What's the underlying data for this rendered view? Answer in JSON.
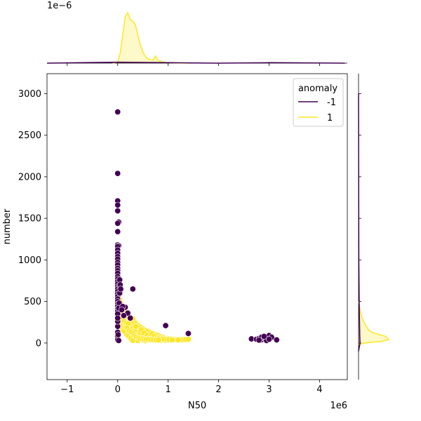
{
  "chart_data": {
    "type": "scatter",
    "title": "",
    "xlabel": "N50",
    "ylabel": "number",
    "x_offset_label": "1e6",
    "y_offset_label": "",
    "top_marginal_offset_label": "1e−6",
    "x_range": [
      -1400000,
      4550000
    ],
    "y_range": [
      -440,
      3240
    ],
    "x_ticks": [
      -1000000,
      0,
      1000000,
      2000000,
      3000000,
      4000000
    ],
    "x_tick_labels": [
      "−1",
      "0",
      "1",
      "2",
      "3",
      "4"
    ],
    "y_ticks": [
      0,
      500,
      1000,
      1500,
      2000,
      2500,
      3000
    ],
    "y_tick_labels": [
      "0",
      "500",
      "1000",
      "1500",
      "2000",
      "2500",
      "3000"
    ],
    "grid": false,
    "legend": {
      "title": "anomaly",
      "placement": "top-right",
      "entries": [
        {
          "label": "-1",
          "color": "#440154"
        },
        {
          "label": "1",
          "color": "#fde725"
        }
      ]
    },
    "series": [
      {
        "name": "1",
        "color": "#fde725",
        "points": [
          [
            40000,
            520
          ],
          [
            60000,
            480
          ],
          [
            80000,
            450
          ],
          [
            120000,
            420
          ],
          [
            150000,
            400
          ],
          [
            100000,
            380
          ],
          [
            50000,
            350
          ],
          [
            200000,
            340
          ],
          [
            180000,
            320
          ],
          [
            250000,
            300
          ],
          [
            300000,
            290
          ],
          [
            120000,
            280
          ],
          [
            80000,
            260
          ],
          [
            220000,
            250
          ],
          [
            350000,
            240
          ],
          [
            280000,
            230
          ],
          [
            150000,
            220
          ],
          [
            400000,
            210
          ],
          [
            60000,
            200
          ],
          [
            450000,
            190
          ],
          [
            320000,
            180
          ],
          [
            200000,
            175
          ],
          [
            500000,
            170
          ],
          [
            100000,
            165
          ],
          [
            380000,
            160
          ],
          [
            550000,
            150
          ],
          [
            250000,
            145
          ],
          [
            600000,
            140
          ],
          [
            420000,
            135
          ],
          [
            150000,
            130
          ],
          [
            650000,
            125
          ],
          [
            300000,
            120
          ],
          [
            700000,
            115
          ],
          [
            480000,
            110
          ],
          [
            180000,
            105
          ],
          [
            750000,
            100
          ],
          [
            350000,
            95
          ],
          [
            800000,
            90
          ],
          [
            550000,
            85
          ],
          [
            220000,
            80
          ],
          [
            850000,
            75
          ],
          [
            400000,
            70
          ],
          [
            900000,
            65
          ],
          [
            620000,
            60
          ],
          [
            260000,
            58
          ],
          [
            950000,
            55
          ],
          [
            1000000,
            52
          ],
          [
            700000,
            50
          ],
          [
            1050000,
            48
          ],
          [
            450000,
            46
          ],
          [
            1100000,
            45
          ],
          [
            800000,
            44
          ],
          [
            1150000,
            43
          ],
          [
            1200000,
            42
          ],
          [
            900000,
            41
          ],
          [
            1250000,
            40
          ],
          [
            1300000,
            40
          ],
          [
            1350000,
            42
          ],
          [
            1400000,
            45
          ],
          [
            1000000,
            39
          ],
          [
            1100000,
            38
          ],
          [
            1200000,
            37
          ],
          [
            500000,
            36
          ],
          [
            650000,
            35
          ],
          [
            750000,
            34
          ],
          [
            850000,
            33
          ],
          [
            950000,
            32
          ],
          [
            300000,
            31
          ],
          [
            400000,
            30
          ],
          [
            550000,
            29
          ],
          [
            120000,
            150
          ],
          [
            160000,
            190
          ],
          [
            240000,
            210
          ],
          [
            280000,
            170
          ],
          [
            330000,
            140
          ],
          [
            360000,
            200
          ],
          [
            430000,
            100
          ],
          [
            470000,
            160
          ],
          [
            520000,
            120
          ],
          [
            580000,
            90
          ],
          [
            640000,
            70
          ],
          [
            680000,
            110
          ],
          [
            720000,
            80
          ],
          [
            780000,
            60
          ],
          [
            820000,
            55
          ],
          [
            880000,
            50
          ],
          [
            920000,
            45
          ],
          [
            980000,
            42
          ],
          [
            1020000,
            40
          ],
          [
            1080000,
            38
          ],
          [
            90000,
            300
          ],
          [
            130000,
            260
          ],
          [
            170000,
            240
          ],
          [
            210000,
            230
          ],
          [
            190000,
            180
          ],
          [
            230000,
            150
          ],
          [
            270000,
            130
          ],
          [
            310000,
            110
          ],
          [
            340000,
            90
          ],
          [
            370000,
            75
          ],
          [
            410000,
            65
          ],
          [
            440000,
            55
          ],
          [
            490000,
            50
          ],
          [
            530000,
            48
          ],
          [
            570000,
            45
          ],
          [
            610000,
            43
          ],
          [
            660000,
            41
          ],
          [
            710000,
            39
          ],
          [
            760000,
            37
          ],
          [
            810000,
            36
          ]
        ]
      },
      {
        "name": "-1",
        "color": "#440154",
        "points": [
          [
            0,
            2780
          ],
          [
            0,
            2040
          ],
          [
            0,
            1710
          ],
          [
            0,
            1660
          ],
          [
            0,
            1590
          ],
          [
            20000,
            1455
          ],
          [
            0,
            1440
          ],
          [
            0,
            1340
          ],
          [
            0,
            1180
          ],
          [
            20000,
            1170
          ],
          [
            0,
            1160
          ],
          [
            0,
            1120
          ],
          [
            0,
            1080
          ],
          [
            0,
            1040
          ],
          [
            0,
            1010
          ],
          [
            0,
            970
          ],
          [
            0,
            940
          ],
          [
            0,
            900
          ],
          [
            0,
            870
          ],
          [
            0,
            840
          ],
          [
            0,
            800
          ],
          [
            0,
            770
          ],
          [
            0,
            740
          ],
          [
            0,
            710
          ],
          [
            0,
            680
          ],
          [
            0,
            650
          ],
          [
            0,
            620
          ],
          [
            0,
            590
          ],
          [
            0,
            560
          ],
          [
            0,
            530
          ],
          [
            40000,
            760
          ],
          [
            40000,
            690
          ],
          [
            40000,
            600
          ],
          [
            50000,
            700
          ],
          [
            0,
            500
          ],
          [
            0,
            470
          ],
          [
            0,
            440
          ],
          [
            0,
            410
          ],
          [
            0,
            380
          ],
          [
            0,
            350
          ],
          [
            60000,
            650
          ],
          [
            30000,
            480
          ],
          [
            20000,
            420
          ],
          [
            300000,
            650
          ],
          [
            150000,
            430
          ],
          [
            100000,
            440
          ],
          [
            80000,
            400
          ],
          [
            200000,
            360
          ],
          [
            120000,
            330
          ],
          [
            250000,
            300
          ],
          [
            0,
            130
          ],
          [
            0,
            80
          ],
          [
            0,
            40
          ],
          [
            20000,
            30
          ],
          [
            10000,
            100
          ],
          [
            0,
            200
          ],
          [
            0,
            260
          ],
          [
            0,
            300
          ],
          [
            950000,
            210
          ],
          [
            1400000,
            115
          ],
          [
            2650000,
            50
          ],
          [
            2750000,
            45
          ],
          [
            2800000,
            55
          ],
          [
            2850000,
            40
          ],
          [
            2900000,
            60
          ],
          [
            2950000,
            50
          ],
          [
            3000000,
            90
          ],
          [
            3050000,
            70
          ],
          [
            2950000,
            30
          ],
          [
            3150000,
            38
          ],
          [
            2850000,
            70
          ],
          [
            2800000,
            35
          ],
          [
            3000000,
            45
          ],
          [
            2900000,
            80
          ]
        ]
      }
    ],
    "marginal_x_density": {
      "series": [
        {
          "name": "1",
          "color": "#fde725",
          "x": [
            -100000,
            0,
            50000,
            100000,
            150000,
            200000,
            250000,
            300000,
            350000,
            400000,
            450000,
            500000,
            550000,
            600000,
            700000,
            750000,
            800000,
            900000,
            1000000,
            1200000,
            1400000
          ],
          "y": [
            0.0,
            0.02,
            0.2,
            0.55,
            0.92,
            1.0,
            0.86,
            0.83,
            0.76,
            0.55,
            0.36,
            0.22,
            0.13,
            0.08,
            0.06,
            0.14,
            0.05,
            0.02,
            0.01,
            0.005,
            0.0
          ]
        },
        {
          "name": "-1",
          "color": "#440154",
          "x": [
            -1400000,
            0,
            1000000,
            2000000,
            3000000,
            4500000
          ],
          "y": [
            0.0,
            0.02,
            0.01,
            0.0,
            0.01,
            0.0
          ]
        }
      ]
    },
    "marginal_y_density": {
      "series": [
        {
          "name": "1",
          "color": "#fde725",
          "y": [
            -20,
            0,
            20,
            40,
            60,
            80,
            100,
            120,
            150,
            200,
            250,
            300,
            350,
            400,
            450,
            500
          ],
          "density": [
            0.0,
            0.2,
            0.75,
            1.0,
            0.95,
            0.9,
            0.7,
            0.5,
            0.35,
            0.25,
            0.18,
            0.12,
            0.08,
            0.05,
            0.03,
            0.0
          ]
        },
        {
          "name": "-1",
          "color": "#440154",
          "y": [
            -100,
            0,
            100,
            500,
            1000,
            2000,
            3000
          ],
          "density": [
            0.0,
            0.05,
            0.04,
            0.02,
            0.01,
            0.005,
            0.0
          ]
        }
      ]
    }
  }
}
